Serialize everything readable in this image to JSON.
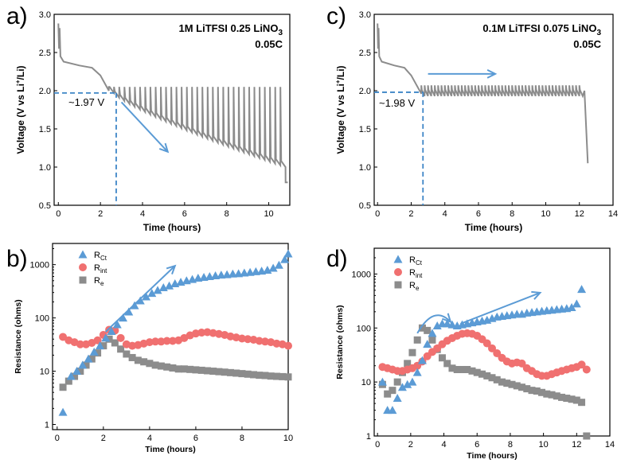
{
  "colors": {
    "blue": "#5b9bd5",
    "red": "#f07070",
    "gray": "#8c8c8c",
    "voltage": "#8c8c8c",
    "dash": "#3d85c6"
  },
  "panels": {
    "a": {
      "letter": "a)",
      "note_line1_prefix": "1M LiTFSI 0.25 LiNO",
      "note_line1_sub": "3",
      "note_line2": "0.05C",
      "annotation": "~1.97 V"
    },
    "b": {
      "letter": "b)"
    },
    "c": {
      "letter": "c)",
      "note_line1_prefix": "0.1M LiTFSI 0.075 LiNO",
      "note_line1_sub": "3",
      "note_line2": "0.05C",
      "annotation": "~1.98 V"
    },
    "d": {
      "letter": "d)"
    }
  },
  "chart_data": [
    {
      "id": "a",
      "type": "line",
      "title": "1M LiTFSI 0.25 LiNO3 0.05C",
      "xlabel": "Time (hours)",
      "ylabel_parts": [
        "Voltage (V vs Li",
        "+",
        "/Li)"
      ],
      "xlim": [
        -0.2,
        11
      ],
      "ylim": [
        0.5,
        3.0
      ],
      "xticks": [
        0,
        2,
        4,
        6,
        8,
        10
      ],
      "yticks": [
        0.5,
        1.0,
        1.5,
        2.0,
        2.5,
        3.0
      ],
      "ytick_labels": [
        "0.5",
        "1.0",
        "1.5",
        "2.0",
        "2.5",
        "3.0"
      ],
      "plateau_voltage": 1.97,
      "plateau_time": 2.75,
      "spike_start": 2.4,
      "spike_end": 10.8,
      "spike_count": 34,
      "spike_top": 2.05,
      "valley_start": 1.97,
      "valley_end": 1.0,
      "arrow": {
        "from": [
          3.0,
          1.85
        ],
        "to": [
          5.2,
          1.2
        ]
      }
    },
    {
      "id": "c",
      "type": "line",
      "title": "0.1M LiTFSI 0.075 LiNO3 0.05C",
      "xlabel": "Time (hours)",
      "ylabel_parts": [
        "Voltage (V vs Li",
        "+",
        "/Li)"
      ],
      "xlim": [
        -0.2,
        14
      ],
      "ylim": [
        0.5,
        3.0
      ],
      "xticks": [
        0,
        2,
        4,
        6,
        8,
        10,
        12,
        14
      ],
      "yticks": [
        0.5,
        1.0,
        1.5,
        2.0,
        2.5,
        3.0
      ],
      "ytick_labels": [
        "0.5",
        "1.0",
        "1.5",
        "2.0",
        "2.5",
        "3.0"
      ],
      "plateau_voltage": 1.98,
      "plateau_time": 2.7,
      "spike_start": 2.6,
      "spike_end": 12.2,
      "spike_count": 48,
      "spike_top": 2.07,
      "valley_start": 1.93,
      "valley_end": 1.93,
      "end_time": 12.5,
      "end_voltage": 1.05,
      "arrow": {
        "from": [
          3.0,
          2.22
        ],
        "to": [
          7.0,
          2.22
        ]
      }
    },
    {
      "id": "b",
      "type": "scatter",
      "xlabel": "Time (hours)",
      "ylabel": "Resistance (ohms)",
      "yscale": "log",
      "xlim": [
        -0.2,
        10
      ],
      "ylim": [
        0.8,
        2500
      ],
      "xticks": [
        0,
        2,
        4,
        6,
        8,
        10
      ],
      "yticks": [
        1,
        10,
        100,
        1000
      ],
      "legend": [
        {
          "name": "R",
          "sub": "Ct",
          "marker": "triangle",
          "color": "#5b9bd5"
        },
        {
          "name": "R",
          "sub": "int",
          "marker": "circle",
          "color": "#f07070"
        },
        {
          "name": "R",
          "sub": "e",
          "marker": "square",
          "color": "#8c8c8c"
        }
      ],
      "series": [
        {
          "name": "R_Ct",
          "marker": "triangle",
          "color": "#5b9bd5",
          "x": [
            0.25,
            0.6,
            0.85,
            1.1,
            1.35,
            1.6,
            1.85,
            2.1,
            2.35,
            2.6,
            2.85,
            3.1,
            3.35,
            3.6,
            3.85,
            4.1,
            4.35,
            4.6,
            4.85,
            5.1,
            5.35,
            5.6,
            5.85,
            6.1,
            6.35,
            6.6,
            6.85,
            7.1,
            7.35,
            7.6,
            7.85,
            8.1,
            8.35,
            8.6,
            8.85,
            9.1,
            9.35,
            9.6,
            9.85,
            10.0
          ],
          "y": [
            1.7,
            8,
            10,
            13,
            17,
            23,
            30,
            42,
            56,
            75,
            100,
            130,
            170,
            210,
            250,
            290,
            330,
            370,
            400,
            440,
            470,
            500,
            530,
            560,
            580,
            600,
            620,
            640,
            650,
            670,
            680,
            700,
            720,
            740,
            760,
            790,
            860,
            980,
            1250,
            1600
          ]
        },
        {
          "name": "R_int",
          "marker": "circle",
          "color": "#f07070",
          "x": [
            0.25,
            0.5,
            0.75,
            1.0,
            1.25,
            1.5,
            1.75,
            2.0,
            2.25,
            2.5,
            2.75,
            3.0,
            3.25,
            3.5,
            3.75,
            4.0,
            4.25,
            4.5,
            4.75,
            5.0,
            5.25,
            5.5,
            5.75,
            6.0,
            6.25,
            6.5,
            6.75,
            7.0,
            7.25,
            7.5,
            7.75,
            8.0,
            8.25,
            8.5,
            8.75,
            9.0,
            9.25,
            9.5,
            9.75,
            10.0
          ],
          "y": [
            44,
            38,
            35,
            32,
            32,
            34,
            38,
            48,
            60,
            58,
            42,
            32,
            30,
            31,
            33,
            35,
            36,
            36,
            37,
            37,
            38,
            42,
            47,
            51,
            53,
            54,
            52,
            50,
            48,
            45,
            43,
            41,
            40,
            39,
            37,
            36,
            35,
            33,
            32,
            30
          ]
        },
        {
          "name": "R_e",
          "marker": "square",
          "color": "#8c8c8c",
          "x": [
            0.25,
            0.5,
            0.75,
            1.0,
            1.25,
            1.5,
            1.75,
            2.0,
            2.25,
            2.5,
            2.75,
            3.0,
            3.25,
            3.5,
            3.75,
            4.0,
            4.25,
            4.5,
            4.75,
            5.0,
            5.25,
            5.5,
            5.75,
            6.0,
            6.25,
            6.5,
            6.75,
            7.0,
            7.25,
            7.5,
            7.75,
            8.0,
            8.25,
            8.5,
            8.75,
            9.0,
            9.25,
            9.5,
            9.75,
            10.0
          ],
          "y": [
            5,
            6.5,
            8,
            10,
            13,
            17,
            22,
            30,
            40,
            34,
            26,
            21,
            18,
            16,
            15,
            14,
            13,
            12.5,
            12,
            11.5,
            11,
            11,
            10.8,
            10.6,
            10.4,
            10.2,
            10,
            9.8,
            9.6,
            9.4,
            9.2,
            9,
            8.8,
            8.6,
            8.4,
            8.3,
            8.1,
            8,
            7.9,
            7.8
          ]
        }
      ],
      "arrow": {
        "from": [
          2.1,
          55
        ],
        "to": [
          5.1,
          950
        ]
      }
    },
    {
      "id": "d",
      "type": "scatter",
      "xlabel": "Time (hours)",
      "ylabel": "Resistance (ohms)",
      "yscale": "log",
      "xlim": [
        -0.2,
        14
      ],
      "ylim": [
        1,
        3000
      ],
      "xticks": [
        0,
        2,
        4,
        6,
        8,
        10,
        12,
        14
      ],
      "yticks": [
        1,
        10,
        100,
        1000
      ],
      "legend": [
        {
          "name": "R",
          "sub": "Ct",
          "marker": "triangle",
          "color": "#5b9bd5"
        },
        {
          "name": "R",
          "sub": "int",
          "marker": "circle",
          "color": "#f07070"
        },
        {
          "name": "R",
          "sub": "e",
          "marker": "square",
          "color": "#8c8c8c"
        }
      ],
      "series": [
        {
          "name": "R_Ct",
          "marker": "triangle",
          "color": "#5b9bd5",
          "x": [
            0.3,
            0.6,
            0.9,
            1.2,
            1.5,
            1.8,
            2.1,
            2.4,
            2.7,
            3.0,
            3.3,
            3.6,
            3.9,
            4.2,
            4.5,
            4.8,
            5.1,
            5.4,
            5.7,
            6.0,
            6.3,
            6.6,
            6.9,
            7.2,
            7.5,
            7.8,
            8.1,
            8.4,
            8.7,
            9.0,
            9.3,
            9.6,
            9.9,
            10.2,
            10.5,
            10.8,
            11.1,
            11.4,
            11.7,
            12.0,
            12.3
          ],
          "y": [
            10,
            3,
            3,
            5,
            8,
            9,
            10,
            15,
            25,
            50,
            80,
            110,
            120,
            120,
            115,
            110,
            115,
            120,
            125,
            130,
            135,
            140,
            150,
            160,
            165,
            170,
            175,
            180,
            180,
            190,
            195,
            200,
            205,
            210,
            215,
            220,
            225,
            230,
            240,
            280,
            520
          ]
        },
        {
          "name": "R_int",
          "marker": "circle",
          "color": "#f07070",
          "x": [
            0.3,
            0.6,
            0.9,
            1.2,
            1.5,
            1.8,
            2.1,
            2.4,
            2.7,
            3.0,
            3.3,
            3.6,
            3.9,
            4.2,
            4.5,
            4.8,
            5.1,
            5.4,
            5.7,
            6.0,
            6.3,
            6.6,
            6.9,
            7.2,
            7.5,
            7.8,
            8.1,
            8.4,
            8.7,
            9.0,
            9.3,
            9.6,
            9.9,
            10.2,
            10.5,
            10.8,
            11.1,
            11.4,
            11.7,
            12.0,
            12.3,
            12.6
          ],
          "y": [
            19,
            18,
            17,
            16,
            16,
            17,
            18,
            20,
            24,
            30,
            36,
            42,
            50,
            58,
            65,
            72,
            78,
            80,
            78,
            72,
            62,
            52,
            42,
            34,
            28,
            24,
            22,
            23,
            22,
            18,
            16,
            14,
            13,
            13,
            14,
            15,
            16,
            17,
            18,
            19,
            21,
            17
          ]
        },
        {
          "name": "R_e",
          "marker": "square",
          "color": "#8c8c8c",
          "x": [
            0.3,
            0.6,
            0.9,
            1.2,
            1.5,
            1.8,
            2.1,
            2.4,
            2.7,
            3.0,
            3.3,
            3.6,
            3.9,
            4.2,
            4.5,
            4.8,
            5.1,
            5.4,
            5.7,
            6.0,
            6.3,
            6.6,
            6.9,
            7.2,
            7.5,
            7.8,
            8.1,
            8.4,
            8.7,
            9.0,
            9.3,
            9.6,
            9.9,
            10.2,
            10.5,
            10.8,
            11.1,
            11.4,
            11.7,
            12.0,
            12.3,
            12.6
          ],
          "y": [
            9,
            6,
            7,
            10,
            15,
            22,
            35,
            60,
            100,
            90,
            60,
            40,
            28,
            22,
            18,
            17,
            17,
            17,
            16,
            15,
            14,
            13,
            12,
            11,
            10,
            9.5,
            9,
            8.5,
            8,
            7.5,
            7,
            6.8,
            6.4,
            6,
            5.8,
            5.5,
            5.2,
            5,
            4.8,
            4.6,
            4.2,
            1.0
          ]
        }
      ],
      "arrows": [
        {
          "kind": "curve",
          "from": [
            2.4,
            80
          ],
          "to": [
            4.4,
            130
          ]
        },
        {
          "kind": "straight",
          "from": [
            5.0,
            120
          ],
          "to": [
            9.8,
            450
          ]
        }
      ]
    }
  ]
}
